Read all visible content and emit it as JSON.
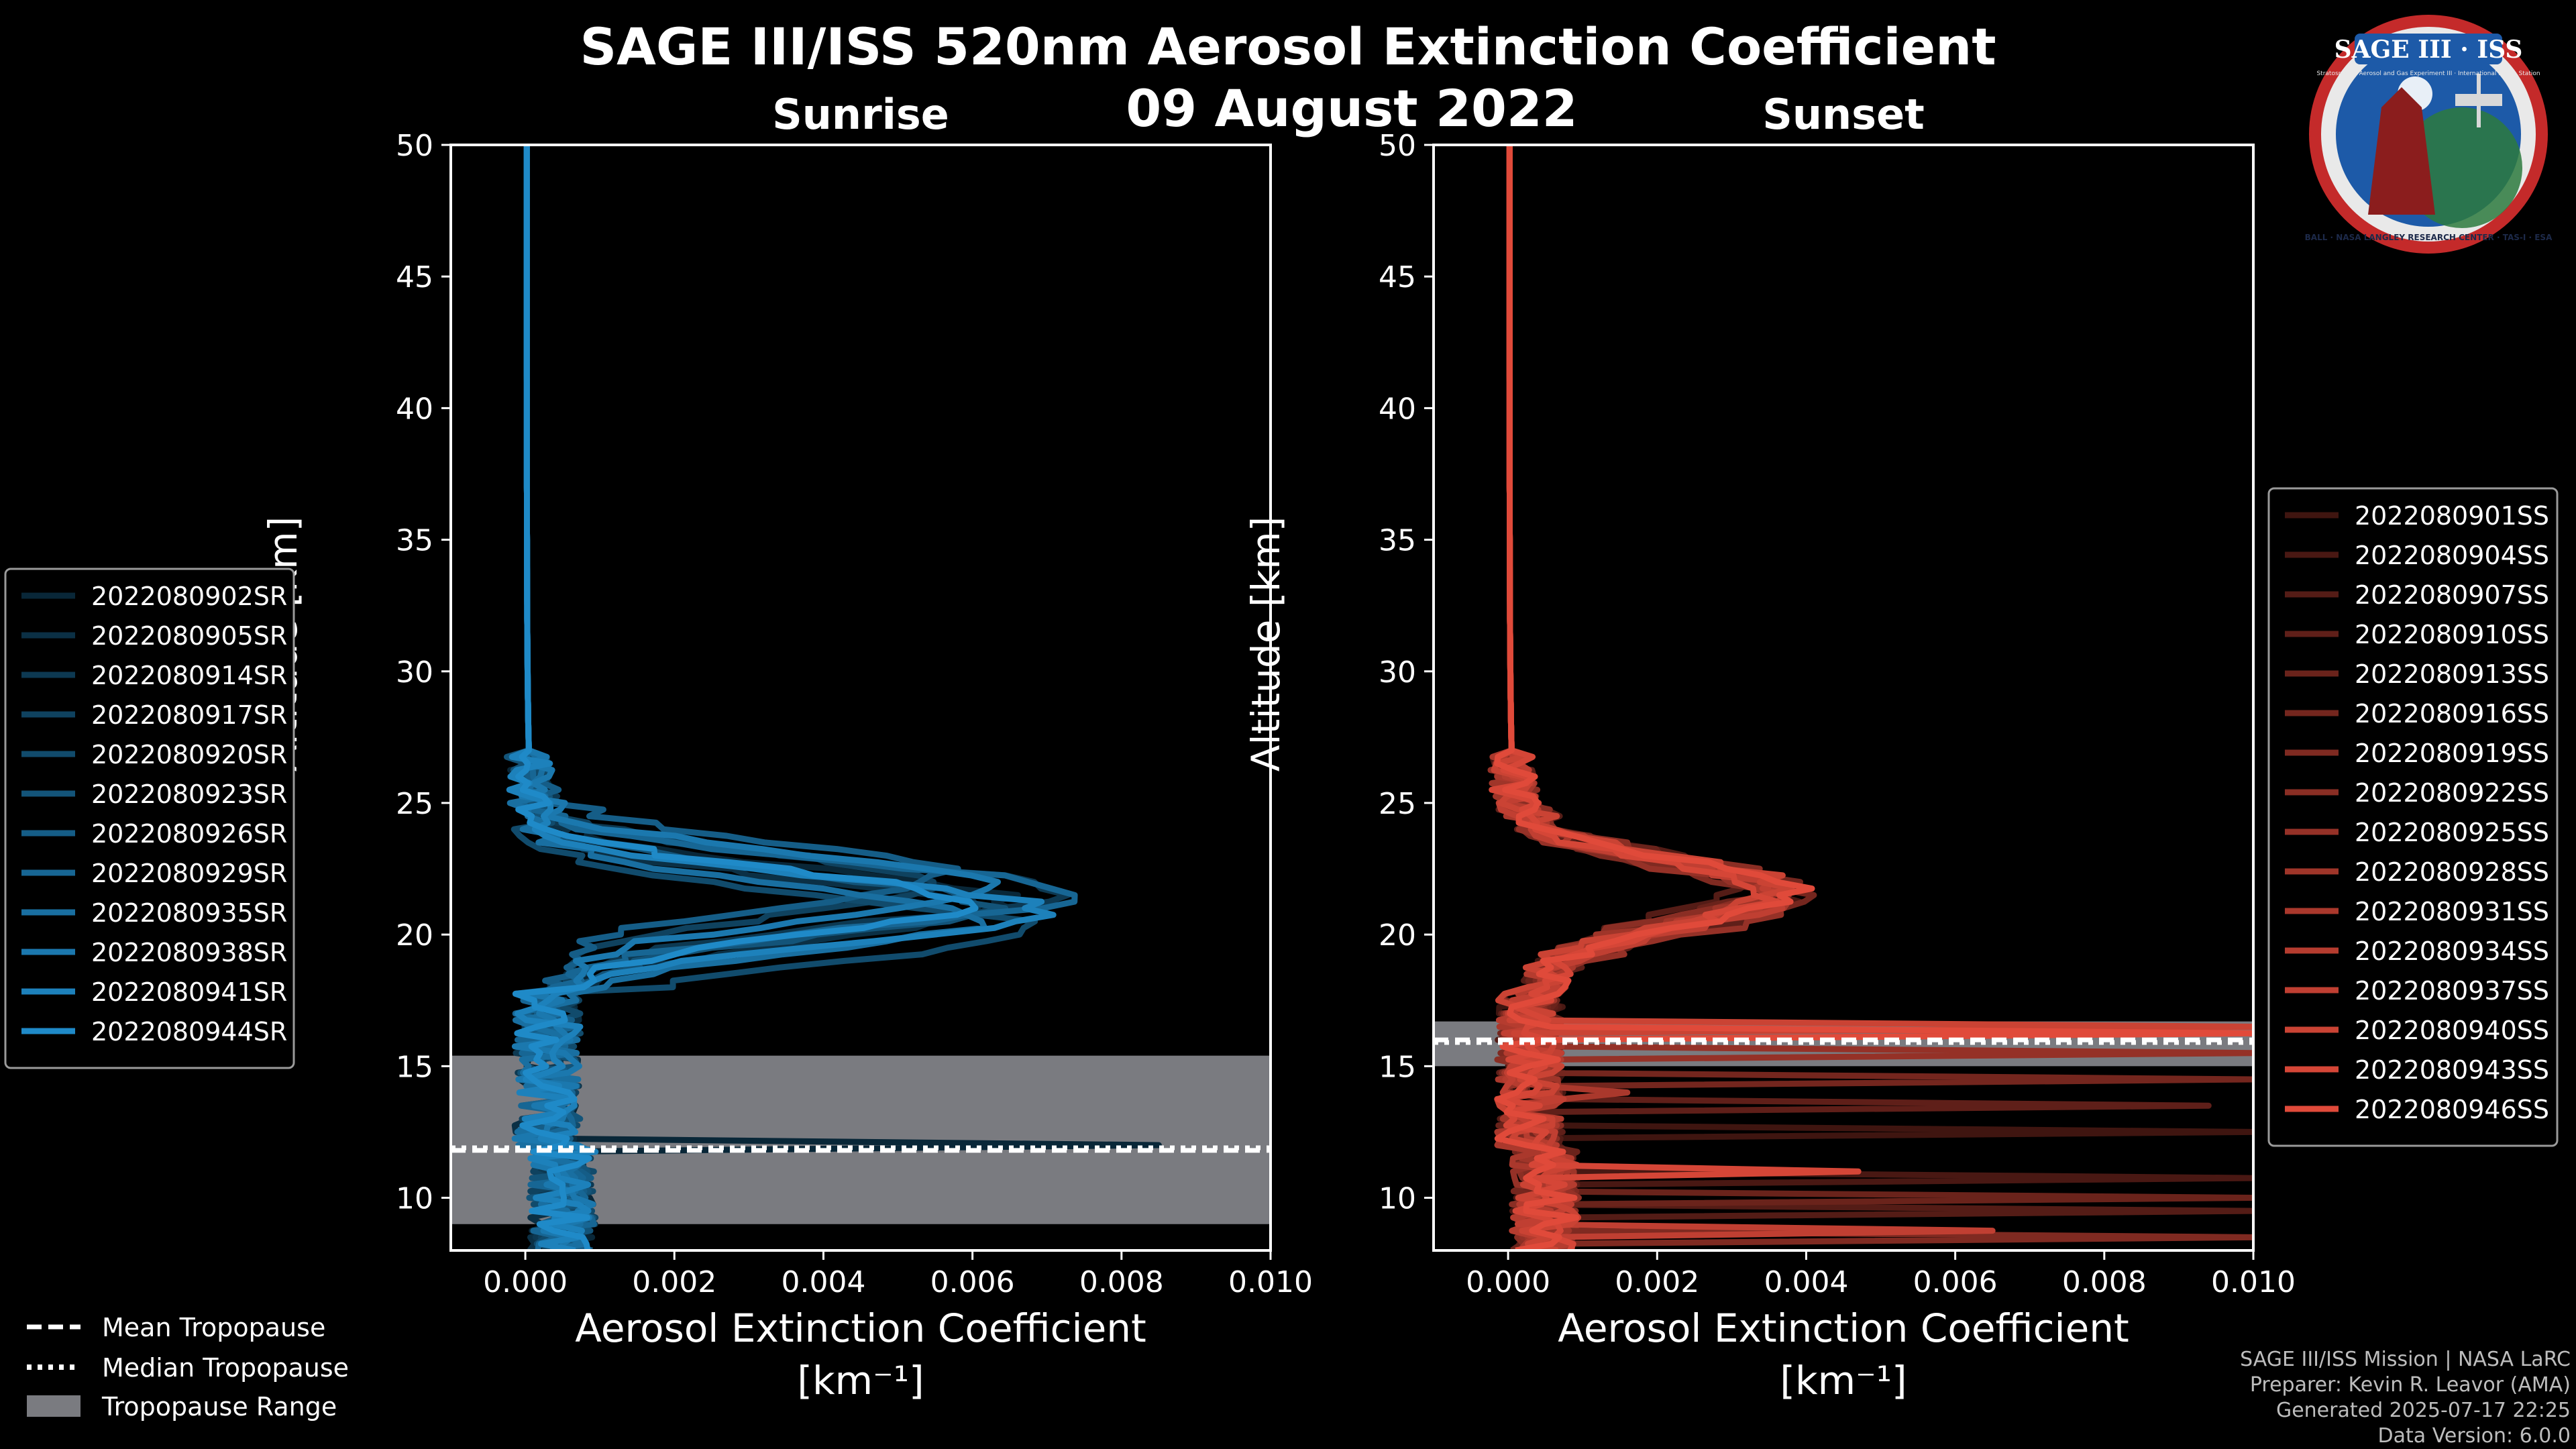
{
  "header": {
    "title_line1": "SAGE III/ISS 520nm Aerosol Extinction Coefficient",
    "title_line2": "09 August 2022"
  },
  "logo": {
    "text": "SAGE III · ISS",
    "ring_text": "BALL · NASA LANGLEY RESEARCH CENTER · TAS-I · ESA",
    "mission_text": "Stratospheric Aerosol and Gas Experiment III · International Space Station"
  },
  "footer": {
    "line1": "SAGE III/ISS Mission | NASA LaRC",
    "line2": "Preparer: Kevin R. Leavor (AMA)",
    "line3": "Generated 2025-07-17 22:25",
    "line4": "Data Version: 6.0.0"
  },
  "tropopause_legend": {
    "mean": "Mean Tropopause",
    "median": "Median Tropopause",
    "range": "Tropopause Range"
  },
  "colors": {
    "sunrise": "#1f8ac8",
    "sunset": "#e04a3a",
    "tropopause_band": "#7a7b80",
    "background": "#000000"
  },
  "chart_data": [
    {
      "type": "line",
      "title": "Sunrise",
      "xlabel": "Aerosol Extinction Coefficient",
      "xlabel_units": "[km⁻¹]",
      "ylabel": "Altitude [km]",
      "xlim": [
        -0.001,
        0.01
      ],
      "ylim": [
        8,
        50
      ],
      "xticks": [
        0.0,
        0.002,
        0.004,
        0.006,
        0.008,
        0.01
      ],
      "xtick_labels": [
        "0.000",
        "0.002",
        "0.004",
        "0.006",
        "0.008",
        "0.010"
      ],
      "yticks": [
        10,
        15,
        20,
        25,
        30,
        35,
        40,
        45,
        50
      ],
      "ytick_labels": [
        "10",
        "15",
        "20",
        "25",
        "30",
        "35",
        "40",
        "45",
        "50"
      ],
      "tropopause": {
        "mean": 11.8,
        "median": 11.9,
        "range": [
          9.0,
          15.4
        ]
      },
      "legend_position": "left",
      "series": [
        {
          "name": "2022080902SR",
          "peak_x": 0.0063,
          "peak_alt": 21.3,
          "spike_x": 0.0085,
          "spike_alt": 12.1
        },
        {
          "name": "2022080905SR",
          "peak_x": 0.0058,
          "peak_alt": 20.9,
          "spike_x": null,
          "spike_alt": null
        },
        {
          "name": "2022080914SR",
          "peak_x": 0.007,
          "peak_alt": 21.6,
          "spike_x": null,
          "spike_alt": null
        },
        {
          "name": "2022080917SR",
          "peak_x": 0.0052,
          "peak_alt": 21.9,
          "spike_x": null,
          "spike_alt": null
        },
        {
          "name": "2022080920SR",
          "peak_x": 0.0066,
          "peak_alt": 20.2,
          "spike_x": null,
          "spike_alt": null
        },
        {
          "name": "2022080923SR",
          "peak_x": 0.006,
          "peak_alt": 21.1,
          "spike_x": null,
          "spike_alt": null
        },
        {
          "name": "2022080926SR",
          "peak_x": 0.0055,
          "peak_alt": 22.3,
          "spike_x": null,
          "spike_alt": null
        },
        {
          "name": "2022080929SR",
          "peak_x": 0.0073,
          "peak_alt": 21.5,
          "spike_x": null,
          "spike_alt": null
        },
        {
          "name": "2022080935SR",
          "peak_x": 0.0059,
          "peak_alt": 20.6,
          "spike_x": null,
          "spike_alt": null
        },
        {
          "name": "2022080938SR",
          "peak_x": 0.0062,
          "peak_alt": 21.8,
          "spike_x": null,
          "spike_alt": null
        },
        {
          "name": "2022080941SR",
          "peak_x": 0.0068,
          "peak_alt": 20.9,
          "spike_x": null,
          "spike_alt": null
        },
        {
          "name": "2022080944SR",
          "peak_x": 0.0057,
          "peak_alt": 21.2,
          "spike_x": null,
          "spike_alt": null
        }
      ]
    },
    {
      "type": "line",
      "title": "Sunset",
      "xlabel": "Aerosol Extinction Coefficient",
      "xlabel_units": "[km⁻¹]",
      "ylabel": "Altitude [km]",
      "xlim": [
        -0.001,
        0.01
      ],
      "ylim": [
        8,
        50
      ],
      "xticks": [
        0.0,
        0.002,
        0.004,
        0.006,
        0.008,
        0.01
      ],
      "xtick_labels": [
        "0.000",
        "0.002",
        "0.004",
        "0.006",
        "0.008",
        "0.010"
      ],
      "yticks": [
        10,
        15,
        20,
        25,
        30,
        35,
        40,
        45,
        50
      ],
      "ytick_labels": [
        "10",
        "15",
        "20",
        "25",
        "30",
        "35",
        "40",
        "45",
        "50"
      ],
      "tropopause": {
        "mean": 16.0,
        "median": 15.9,
        "range": [
          15.0,
          16.7
        ]
      },
      "legend_position": "right",
      "series": [
        {
          "name": "2022080901SS",
          "peak_x": 0.0034,
          "peak_alt": 21.7,
          "spike_x": 0.01,
          "spike_alt": 12.4
        },
        {
          "name": "2022080904SS",
          "peak_x": 0.0036,
          "peak_alt": 21.5,
          "spike_x": 0.01,
          "spike_alt": 10.8
        },
        {
          "name": "2022080907SS",
          "peak_x": 0.0031,
          "peak_alt": 22.0,
          "spike_x": 0.01,
          "spike_alt": 9.5
        },
        {
          "name": "2022080910SS",
          "peak_x": 0.0035,
          "peak_alt": 21.3,
          "spike_x": 0.0094,
          "spike_alt": 13.5
        },
        {
          "name": "2022080913SS",
          "peak_x": 0.0033,
          "peak_alt": 21.8,
          "spike_x": 0.01,
          "spike_alt": 10.0
        },
        {
          "name": "2022080916SS",
          "peak_x": 0.0037,
          "peak_alt": 21.6,
          "spike_x": 0.01,
          "spike_alt": 14.6
        },
        {
          "name": "2022080919SS",
          "peak_x": 0.0032,
          "peak_alt": 21.4,
          "spike_x": 0.01,
          "spike_alt": 8.6
        },
        {
          "name": "2022080922SS",
          "peak_x": 0.0034,
          "peak_alt": 21.9,
          "spike_x": null,
          "spike_alt": null
        },
        {
          "name": "2022080925SS",
          "peak_x": 0.0036,
          "peak_alt": 21.2,
          "spike_x": 0.01,
          "spike_alt": 15.4
        },
        {
          "name": "2022080928SS",
          "peak_x": 0.0033,
          "peak_alt": 21.7,
          "spike_x": null,
          "spike_alt": null
        },
        {
          "name": "2022080931SS",
          "peak_x": 0.0035,
          "peak_alt": 21.5,
          "spike_x": 0.0016,
          "spike_alt": 14.0
        },
        {
          "name": "2022080934SS",
          "peak_x": 0.0034,
          "peak_alt": 21.6,
          "spike_x": 0.01,
          "spike_alt": 16.3
        },
        {
          "name": "2022080937SS",
          "peak_x": 0.0036,
          "peak_alt": 21.4,
          "spike_x": 0.0065,
          "spike_alt": 8.7
        },
        {
          "name": "2022080940SS",
          "peak_x": 0.0035,
          "peak_alt": 21.8,
          "spike_x": 0.01,
          "spike_alt": 16.6
        },
        {
          "name": "2022080943SS",
          "peak_x": 0.0033,
          "peak_alt": 21.5,
          "spike_x": 0.0047,
          "spike_alt": 11.0
        },
        {
          "name": "2022080946SS",
          "peak_x": 0.0037,
          "peak_alt": 21.6,
          "spike_x": 0.01,
          "spike_alt": 16.2
        }
      ]
    }
  ]
}
